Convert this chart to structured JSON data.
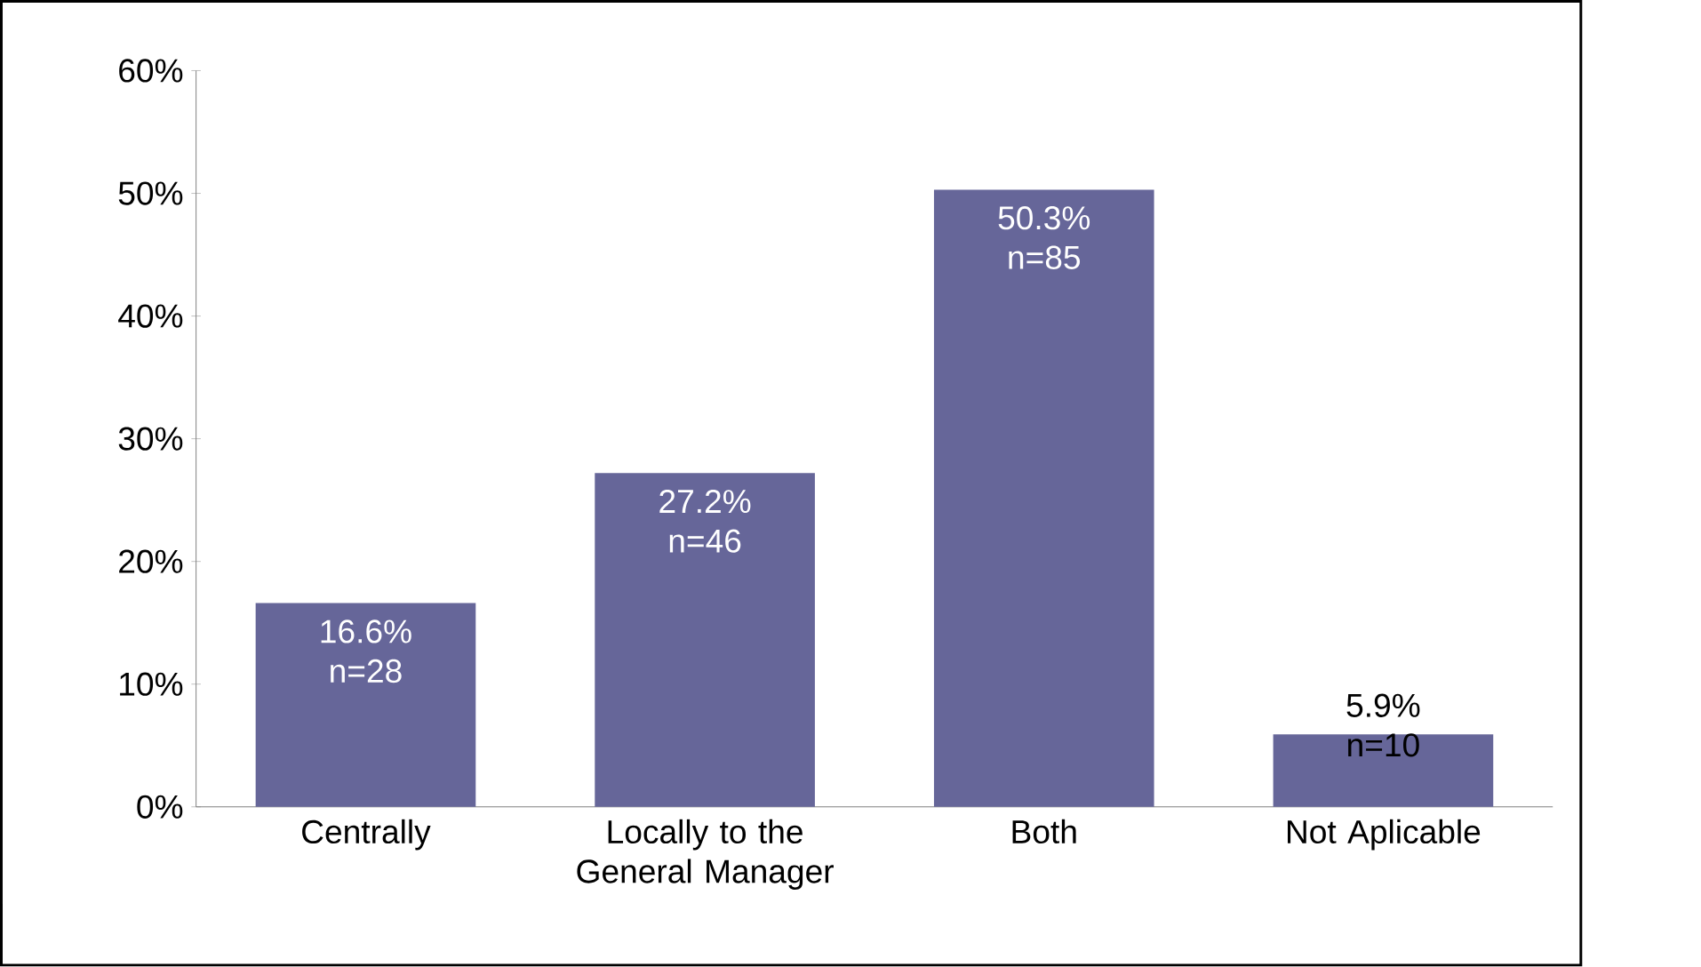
{
  "chart_data": {
    "type": "bar",
    "categories": [
      "Centrally",
      "Locally to the General Manager",
      "Both",
      "Not Aplicable"
    ],
    "values": [
      16.6,
      27.2,
      50.3,
      5.9
    ],
    "color": "#666699",
    "value_labels": [
      "16.6% n=28",
      "27.2% n=46",
      "50.3% n=85",
      "5.9% n=10"
    ],
    "ylim": [
      0,
      60
    ],
    "yticks": [
      {
        "value": 0,
        "label": "0%"
      },
      {
        "value": 10,
        "label": "10%"
      },
      {
        "value": 20,
        "label": "20%"
      },
      {
        "value": 30,
        "label": "30%"
      },
      {
        "value": 40,
        "label": "40%"
      },
      {
        "value": 50,
        "label": "50%"
      },
      {
        "value": 60,
        "label": "60%"
      }
    ],
    "grid": false
  }
}
